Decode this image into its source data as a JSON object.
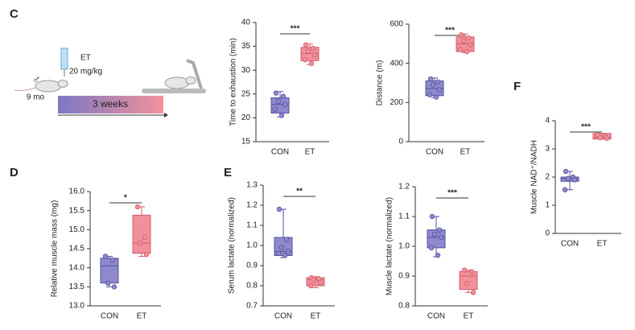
{
  "panel_labels": [
    "C",
    "D",
    "E",
    "F"
  ],
  "schematic": {
    "drug": "ET",
    "dose": "20 mg/kg",
    "sex": "♂",
    "age": "9 mo",
    "duration": "3 weeks"
  },
  "chart_data": [
    {
      "type": "box",
      "ylabel": "Time to exhaustion (min)",
      "categories": [
        "CON",
        "ET"
      ],
      "annotation": "***",
      "ylim": [
        15,
        40
      ],
      "yticks": [
        15,
        20,
        25,
        30,
        35,
        40
      ],
      "boxes": [
        {
          "color": "#8d89cc",
          "min": 20.2,
          "q1": 21,
          "median": 22.8,
          "q3": 24.2,
          "max": 25.5,
          "points": [
            25.2,
            24.5,
            23.5,
            22.8,
            21.8,
            20.5
          ]
        },
        {
          "color": "#f0909a",
          "min": 31.2,
          "q1": 32,
          "median": 33.5,
          "q3": 34.8,
          "max": 35.5,
          "points": [
            35.3,
            34.6,
            34,
            33.2,
            32.2,
            31.4
          ]
        }
      ]
    },
    {
      "type": "box",
      "ylabel": "Distance (m)",
      "categories": [
        "CON",
        "ET"
      ],
      "annotation": "***",
      "ylim": [
        0,
        600
      ],
      "yticks": [
        0,
        200,
        400,
        600
      ],
      "boxes": [
        {
          "color": "#8d89cc",
          "min": 225,
          "q1": 235,
          "median": 270,
          "q3": 310,
          "max": 325,
          "points": [
            320,
            305,
            290,
            265,
            240,
            228
          ]
        },
        {
          "color": "#f0909a",
          "min": 455,
          "q1": 460,
          "median": 500,
          "q3": 535,
          "max": 550,
          "points": [
            545,
            530,
            515,
            495,
            470,
            460
          ]
        }
      ]
    },
    {
      "type": "box",
      "ylabel": "Relative muscle mass (mg)",
      "categories": [
        "CON",
        "ET"
      ],
      "annotation": "*",
      "ylim": [
        13,
        16
      ],
      "yticks": [
        {
          "value": 13,
          "label": "13.0"
        },
        13.5,
        {
          "value": 14,
          "label": "14.0"
        },
        14.5,
        {
          "value": 15,
          "label": "15.0"
        },
        15.5,
        {
          "value": 16,
          "label": "16.0"
        }
      ],
      "boxes": [
        {
          "color": "#8d89cc",
          "min": 13.5,
          "q1": 13.6,
          "median": 14.05,
          "q3": 14.25,
          "max": 14.3,
          "points": [
            14.3,
            14.2,
            13.6,
            13.5
          ]
        },
        {
          "color": "#f0909a",
          "min": 14.3,
          "q1": 14.38,
          "median": 14.65,
          "q3": 15.38,
          "max": 15.6,
          "points": [
            15.6,
            14.8,
            14.65,
            14.35
          ]
        }
      ]
    },
    {
      "type": "box",
      "ylabel": "Serum lactate (normalized)",
      "categories": [
        "CON",
        "ET"
      ],
      "annotation": "**",
      "ylim": [
        0.7,
        1.3
      ],
      "yticks": [
        0.7,
        0.8,
        0.9,
        {
          "value": 1.0,
          "label": "1.0"
        },
        1.1,
        1.2,
        1.3
      ],
      "boxes": [
        {
          "color": "#8d89cc",
          "min": 0.94,
          "q1": 0.95,
          "median": 0.97,
          "q3": 1.04,
          "max": 1.18,
          "points": [
            1.18,
            1.03,
            0.99,
            0.97,
            0.96,
            0.95
          ]
        },
        {
          "color": "#f0909a",
          "min": 0.79,
          "q1": 0.8,
          "median": 0.83,
          "q3": 0.84,
          "max": 0.845,
          "points": [
            0.84,
            0.835,
            0.83,
            0.815,
            0.8
          ]
        }
      ]
    },
    {
      "type": "box",
      "ylabel": "Muscle lactate (normalized)",
      "categories": [
        "CON",
        "ET"
      ],
      "annotation": "***",
      "ylim": [
        0.8,
        1.2
      ],
      "yticks": [
        0.8,
        0.9,
        {
          "value": 1.0,
          "label": "1.0"
        },
        1.1,
        1.2
      ],
      "boxes": [
        {
          "color": "#8d89cc",
          "min": 0.965,
          "q1": 0.995,
          "median": 1.03,
          "q3": 1.055,
          "max": 1.1,
          "points": [
            1.1,
            1.055,
            1.04,
            1.03,
            0.995,
            0.97
          ]
        },
        {
          "color": "#f0909a",
          "min": 0.845,
          "q1": 0.855,
          "median": 0.9,
          "q3": 0.915,
          "max": 0.92,
          "points": [
            0.92,
            0.915,
            0.875,
            0.845
          ]
        }
      ]
    },
    {
      "type": "box",
      "ylabel": "Muscle NAD⁺/NADH",
      "categories": [
        "CON",
        "ET"
      ],
      "annotation": "***",
      "ylim": [
        0,
        4
      ],
      "yticks": [
        0,
        1,
        2,
        3,
        4
      ],
      "boxes": [
        {
          "color": "#8d89cc",
          "min": 1.55,
          "q1": 1.85,
          "median": 1.95,
          "q3": 2.0,
          "max": 2.2,
          "points": [
            2.2,
            2.0,
            1.95,
            1.9,
            1.55
          ]
        },
        {
          "color": "#f0909a",
          "min": 3.35,
          "q1": 3.35,
          "median": 3.4,
          "q3": 3.55,
          "max": 3.55,
          "points": [
            3.5,
            3.45,
            3.4,
            3.38
          ]
        }
      ]
    }
  ]
}
